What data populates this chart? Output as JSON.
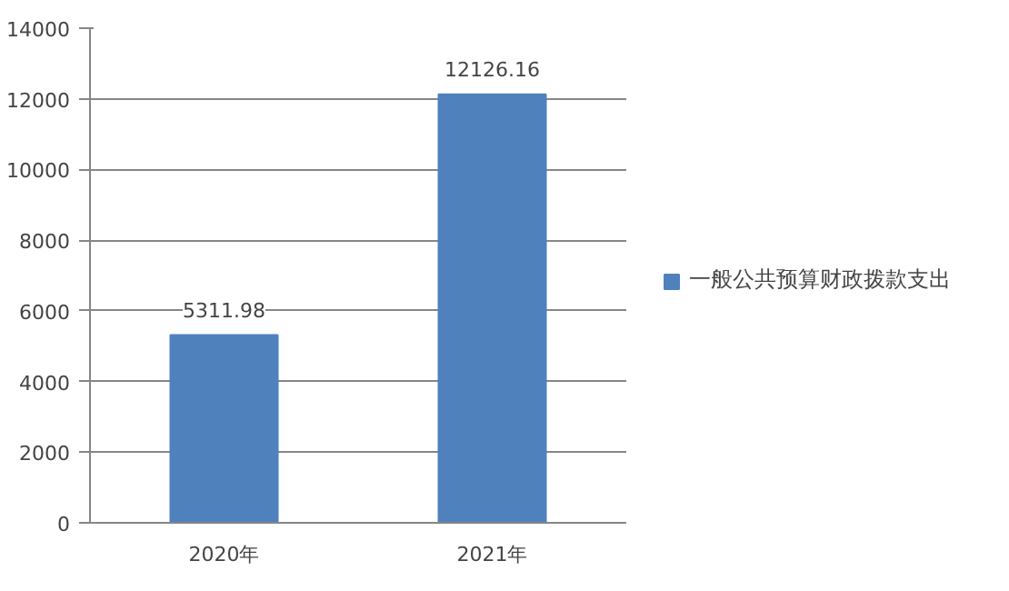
{
  "chart_data": {
    "type": "bar",
    "categories": [
      "2020年",
      "2021年"
    ],
    "series": [
      {
        "name": "一般公共预算财政拨款支出",
        "color": "#4f81bd",
        "values": [
          5311.98,
          12126.16
        ]
      }
    ],
    "ylim": [
      0,
      14000
    ],
    "yticks": [
      0,
      2000,
      4000,
      6000,
      8000,
      10000,
      12000,
      14000
    ],
    "grid": "y",
    "legend": "right",
    "data_labels": true
  }
}
